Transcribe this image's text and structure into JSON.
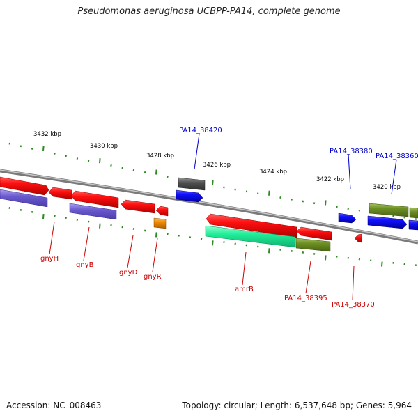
{
  "title": "Pseudomonas aeruginosa UCBPP-PA14, complete genome",
  "footer": {
    "accession": "Accession: NC_008463",
    "topology": "Topology: circular; Length: 6,537,648 bp; Genes: 5,964"
  },
  "scale_labels": [
    "3432 kbp",
    "3430 kbp",
    "3428 kbp",
    "3426 kbp",
    "3424 kbp",
    "3422 kbp",
    "3420 kbp"
  ],
  "gene_labels": {
    "top": [
      "PA14_38420",
      "PA14_38380",
      "PA14_38360"
    ],
    "bottom": [
      "gnyH",
      "gnyB",
      "gnyD",
      "gnyR",
      "amrB",
      "PA14_38395",
      "PA14_38370"
    ]
  },
  "colors": {
    "red": "#e00000",
    "blue": "#1010e0",
    "purple": "#6a5acd",
    "green": "#6b8e23",
    "teal": "#20e090",
    "gray": "#505050",
    "orange": "#f08a00",
    "tick_green": "#2e8b22",
    "label_red": "#cc0000",
    "label_blue": "#0000cc"
  }
}
